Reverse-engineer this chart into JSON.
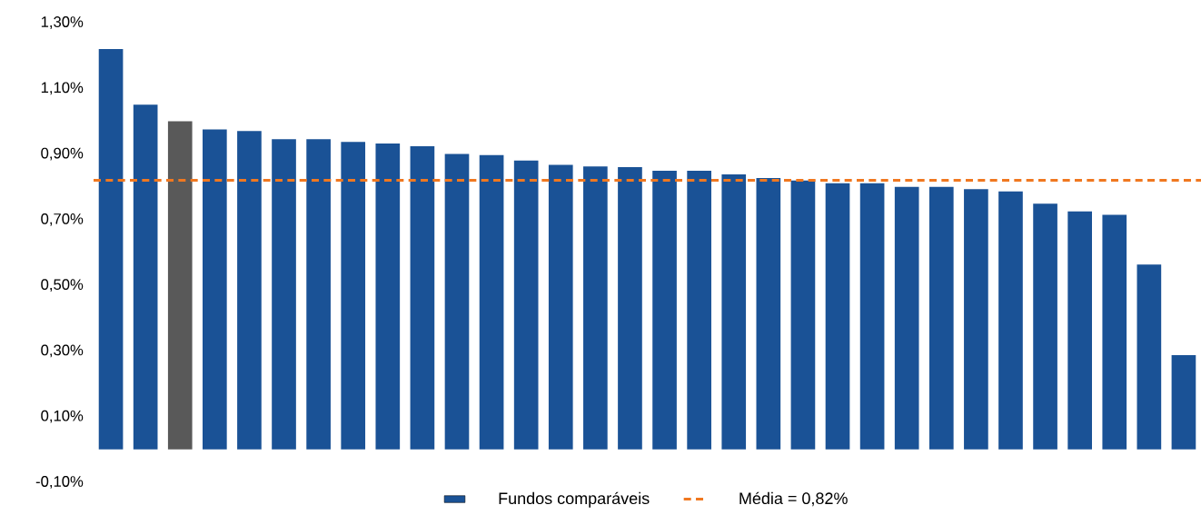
{
  "chart_data": {
    "type": "bar",
    "categories": [
      null,
      null,
      null,
      null,
      null,
      null,
      null,
      null,
      null,
      null,
      null,
      null,
      null,
      null,
      null,
      null,
      null,
      null,
      null,
      null,
      null,
      null,
      null,
      null,
      null,
      null,
      null,
      null,
      null,
      null,
      null,
      null
    ],
    "series": [
      {
        "name": "Fundos comparáveis",
        "colors": [
          "#1a5296",
          "#1a5296",
          "#595959",
          "#1a5296",
          "#1a5296",
          "#1a5296",
          "#1a5296",
          "#1a5296",
          "#1a5296",
          "#1a5296",
          "#1a5296",
          "#1a5296",
          "#1a5296",
          "#1a5296",
          "#1a5296",
          "#1a5296",
          "#1a5296",
          "#1a5296",
          "#1a5296",
          "#1a5296",
          "#1a5296",
          "#1a5296",
          "#1a5296",
          "#1a5296",
          "#1a5296",
          "#1a5296",
          "#1a5296",
          "#1a5296",
          "#1a5296",
          "#1a5296",
          "#1a5296",
          "#1a5296"
        ],
        "values": [
          1.22,
          1.05,
          1.0,
          0.975,
          0.97,
          0.945,
          0.945,
          0.937,
          0.932,
          0.924,
          0.9,
          0.897,
          0.88,
          0.867,
          0.862,
          0.86,
          0.849,
          0.849,
          0.838,
          0.827,
          0.819,
          0.811,
          0.811,
          0.8,
          0.8,
          0.793,
          0.786,
          0.749,
          0.725,
          0.715,
          0.563,
          0.287
        ]
      }
    ],
    "ylim": [
      -0.1,
      1.3
    ],
    "yticks": [
      {
        "value": -0.1,
        "label": "-0,10%"
      },
      {
        "value": 0.1,
        "label": "0,10%"
      },
      {
        "value": 0.3,
        "label": "0,30%"
      },
      {
        "value": 0.5,
        "label": "0,50%"
      },
      {
        "value": 0.7,
        "label": "0,70%"
      },
      {
        "value": 0.9,
        "label": "0,90%"
      },
      {
        "value": 1.1,
        "label": "1,10%"
      },
      {
        "value": 1.3,
        "label": "1,30%"
      }
    ],
    "ref_lines": [
      {
        "axis": "y",
        "value": 0.82,
        "label": "Média = 0,82%",
        "color": "#f07820",
        "line_style": "dashed"
      }
    ],
    "grid": false,
    "legend": "bottom"
  }
}
